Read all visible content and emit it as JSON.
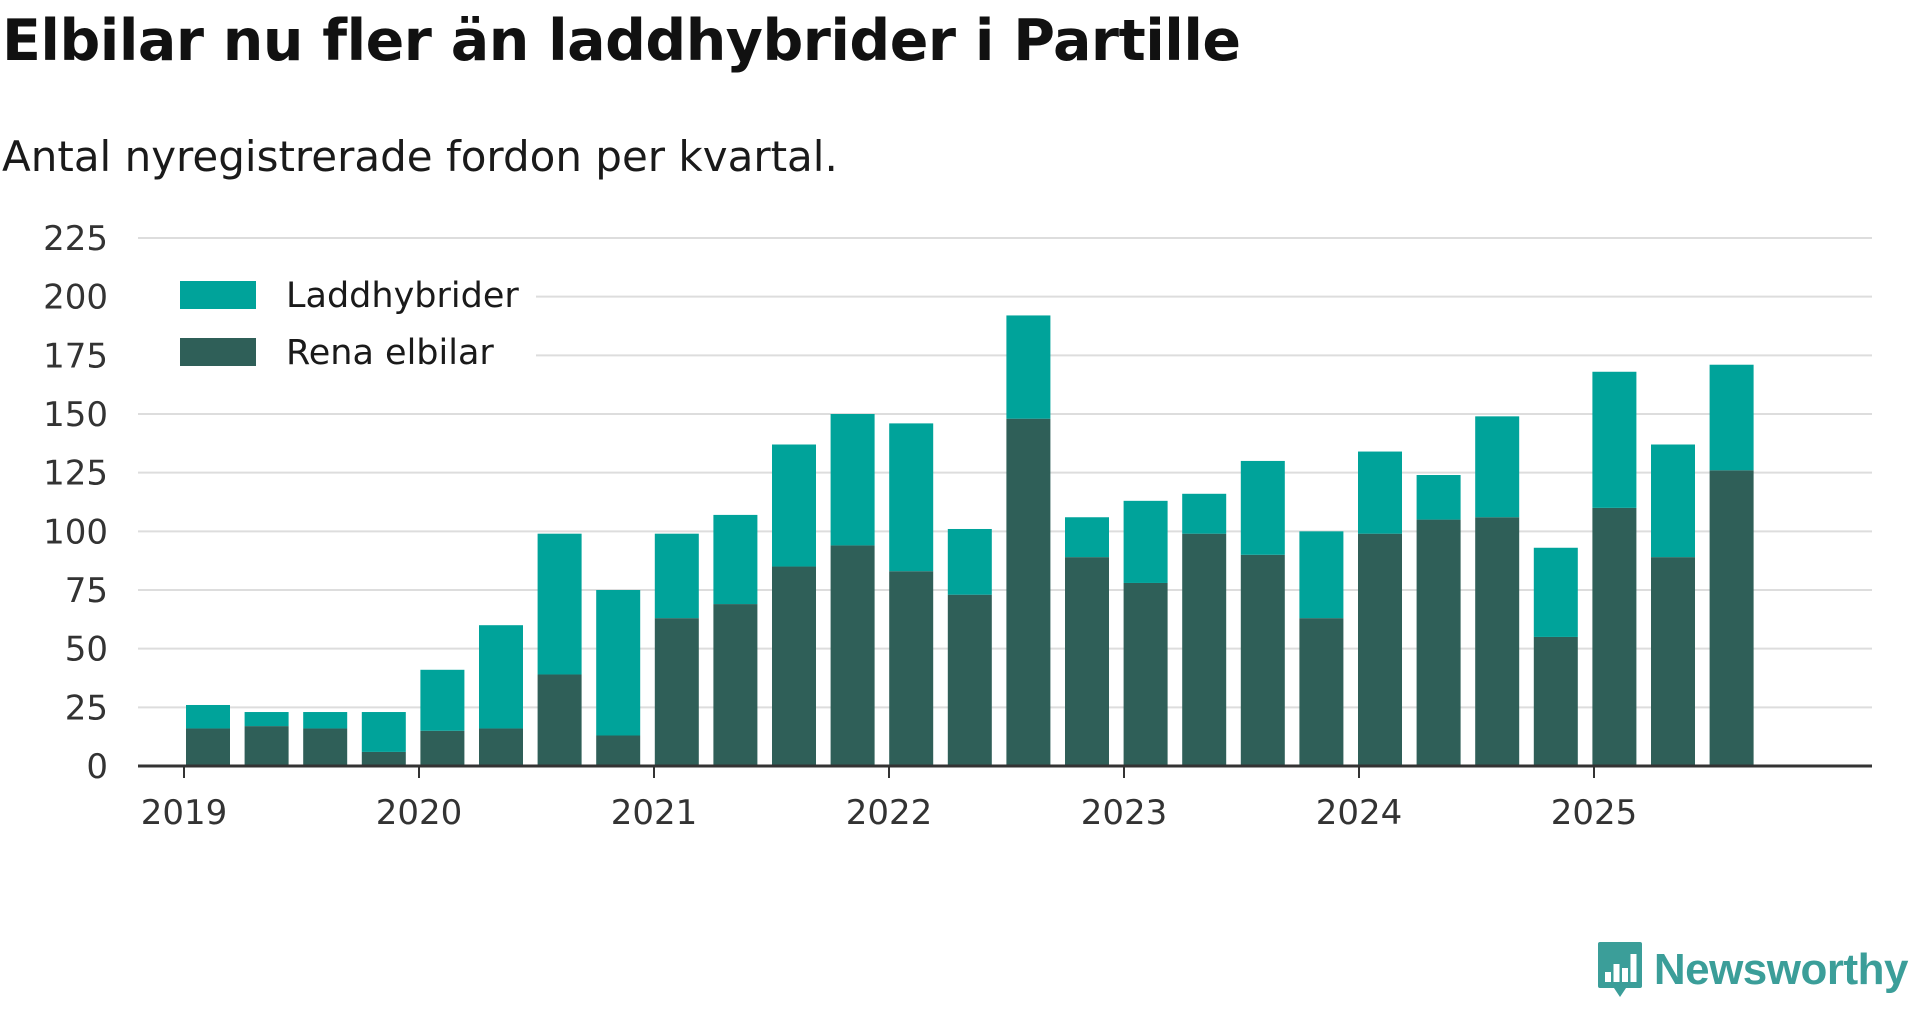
{
  "header": {
    "title": "Elbilar nu fler än laddhybrider i Partille",
    "subtitle": "Antal nyregistrerade fordon per kvartal."
  },
  "brand": {
    "name": "Newsworthy",
    "icon": "bar-chart-icon"
  },
  "colors": {
    "laddhybrider": "#00a39a",
    "rena_elbilar": "#2f5f58",
    "grid": "#dddddd",
    "axis": "#333333"
  },
  "chart_data": {
    "type": "bar",
    "stacked": true,
    "title": "Elbilar nu fler än laddhybrider i Partille",
    "subtitle": "Antal nyregistrerade fordon per kvartal.",
    "xlabel": "",
    "ylabel": "",
    "ylim": [
      0,
      225
    ],
    "yticks": [
      0,
      25,
      50,
      75,
      100,
      125,
      150,
      175,
      200,
      225
    ],
    "xtick_labels": [
      "2019",
      "2020",
      "2021",
      "2022",
      "2023",
      "2024",
      "2025"
    ],
    "grid": true,
    "legend_position": "top-left",
    "categories": [
      "2019 K2",
      "2019 K3",
      "2019 K4",
      "2020 K1",
      "2020 K2",
      "2020 K3",
      "2020 K4",
      "2021 K1",
      "2021 K2",
      "2021 K3",
      "2021 K4",
      "2022 K1",
      "2022 K2",
      "2022 K3",
      "2022 K4",
      "2023 K1",
      "2023 K2",
      "2023 K3",
      "2023 K4",
      "2024 K1",
      "2024 K2",
      "2024 K3",
      "2024 K4",
      "2025 K1",
      "2025 K2",
      "2025 K3",
      "2025 K4"
    ],
    "series": [
      {
        "name": "Rena elbilar",
        "values": [
          16,
          17,
          16,
          6,
          15,
          16,
          39,
          13,
          63,
          69,
          85,
          94,
          83,
          73,
          148,
          89,
          78,
          99,
          90,
          63,
          99,
          105,
          106,
          55,
          110,
          89,
          126
        ]
      },
      {
        "name": "Laddhybrider",
        "values": [
          10,
          6,
          7,
          17,
          26,
          44,
          60,
          62,
          36,
          38,
          52,
          56,
          63,
          28,
          44,
          17,
          35,
          17,
          40,
          37,
          35,
          19,
          43,
          38,
          58,
          48,
          45
        ]
      }
    ]
  }
}
